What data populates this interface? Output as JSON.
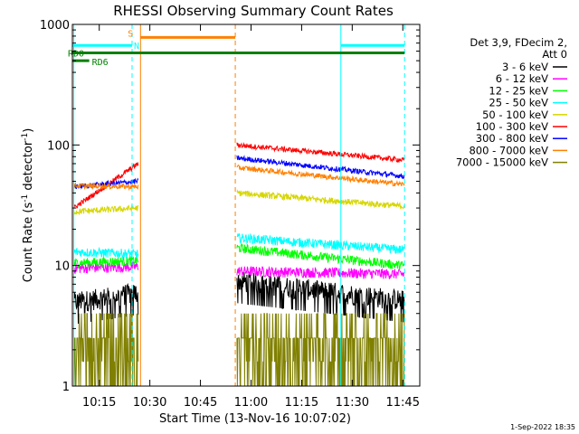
{
  "chart_data": {
    "type": "line",
    "title": "RHESSI Observing Summary Count Rates",
    "xlabel": "Start Time (13-Nov-16 10:07:02)",
    "ylabel_main": "Count Rate (s",
    "ylabel_sup1": "-1",
    "ylabel_mid": " detector",
    "ylabel_sup2": "-1",
    "ylabel_end": ")",
    "y_scale": "log",
    "ylim": [
      1,
      1000
    ],
    "xlim_minutes_after_start": [
      0,
      103
    ],
    "x_ticks": [
      "10:15",
      "10:30",
      "10:45",
      "11:00",
      "11:15",
      "11:30",
      "11:45"
    ],
    "x_tick_minutes": [
      7.97,
      22.97,
      37.97,
      52.97,
      67.97,
      82.97,
      97.97
    ],
    "y_ticks": [
      "1",
      "10",
      "100",
      "1000"
    ],
    "y_tick_values": [
      1,
      10,
      100,
      1000
    ],
    "legend_header": [
      "Det 3,9, FDecim 2,",
      "Att 0"
    ],
    "legend_placement": "right",
    "series": [
      {
        "name": "3 - 6 keV",
        "color": "#000000",
        "segments": [
          [
            0.4,
            19.5,
            5.0,
            6.0
          ],
          [
            48.8,
            98.4,
            7.5,
            5.2
          ]
        ]
      },
      {
        "name": "6 - 12 keV",
        "color": "#ff00ff",
        "segments": [
          [
            0.4,
            19.5,
            9.5,
            9.8
          ],
          [
            48.8,
            98.4,
            9.0,
            8.5
          ]
        ]
      },
      {
        "name": "12 - 25 keV",
        "color": "#00ff00",
        "segments": [
          [
            0.4,
            19.5,
            10.5,
            11.0
          ],
          [
            48.8,
            98.4,
            14.0,
            10.0
          ]
        ]
      },
      {
        "name": "25 - 50 keV",
        "color": "#00ffff",
        "segments": [
          [
            0.4,
            19.5,
            13.0,
            12.5
          ],
          [
            48.8,
            98.4,
            17.0,
            13.5
          ]
        ]
      },
      {
        "name": "50 - 100 keV",
        "color": "#d6d600",
        "segments": [
          [
            0.4,
            19.5,
            28.0,
            30.0
          ],
          [
            48.8,
            98.4,
            40.0,
            31.0
          ]
        ]
      },
      {
        "name": "100 - 300 keV",
        "color": "#ff0000",
        "segments": [
          [
            0.4,
            19.5,
            30.0,
            70.0
          ],
          [
            48.8,
            98.4,
            100.0,
            75.0
          ]
        ]
      },
      {
        "name": "300 - 800 keV",
        "color": "#0000ff",
        "segments": [
          [
            0.4,
            19.5,
            45.0,
            50.0
          ],
          [
            48.8,
            98.4,
            78.0,
            55.0
          ]
        ]
      },
      {
        "name": "800 - 7000 keV",
        "color": "#ff8000",
        "segments": [
          [
            0.4,
            19.5,
            46.0,
            45.0
          ],
          [
            48.8,
            98.4,
            65.0,
            47.0
          ]
        ]
      },
      {
        "name": "7000 - 15000 keV",
        "color": "#808000",
        "segments": [
          [
            0.4,
            19.5,
            2.5,
            2.5
          ],
          [
            48.8,
            98.4,
            2.5,
            2.5
          ]
        ]
      }
    ],
    "bars": [
      {
        "label": "S",
        "color": "#ff8000",
        "start_min": 20.2,
        "end_min": 48.3,
        "level": 780
      },
      {
        "label": "N",
        "color": "#00ffff",
        "start_min": 0.0,
        "end_min": 17.7,
        "level": 670
      },
      {
        "label": "",
        "color": "#00ffff",
        "start_min": 79.6,
        "end_min": 98.5,
        "level": 670
      },
      {
        "label": "RD0",
        "color": "#008000",
        "start_min": 0.0,
        "end_min": 98.5,
        "level": 580
      },
      {
        "label": "RD6",
        "color": "#008000",
        "start_min": 0.0,
        "end_min": 5.0,
        "level": 500
      }
    ],
    "vlines": [
      {
        "minute": 0.4,
        "color": "#00ffff",
        "style": "solid"
      },
      {
        "minute": 17.7,
        "color": "#00ffff",
        "style": "dashed"
      },
      {
        "minute": 20.2,
        "color": "#ff8000",
        "style": "solid"
      },
      {
        "minute": 48.3,
        "color": "#ff8000",
        "style": "dashed"
      },
      {
        "minute": 79.6,
        "color": "#00ffff",
        "style": "solid"
      },
      {
        "minute": 98.5,
        "color": "#00ffff",
        "style": "dashed"
      }
    ],
    "timestamp": "1-Sep-2022 18:35"
  }
}
